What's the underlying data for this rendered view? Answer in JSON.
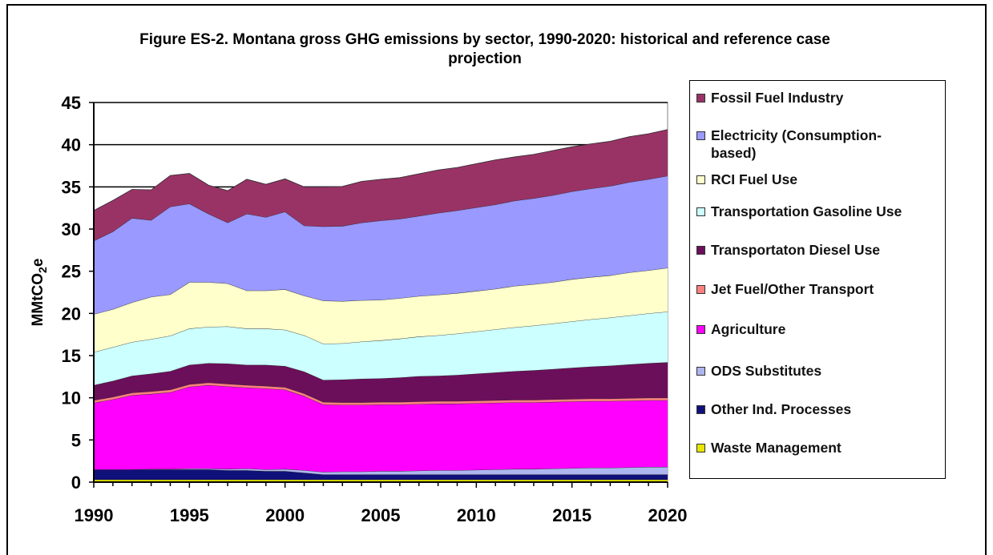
{
  "chart_data": {
    "type": "area",
    "stacked": true,
    "title": "Figure ES-2. Montana gross GHG emissions by sector, 1990-2020: historical and reference case\nprojection",
    "ylabel": "MMtCO2e",
    "xlabel": "",
    "ylim": [
      0,
      45
    ],
    "xlim": [
      1990,
      2020
    ],
    "x_ticks": [
      1990,
      1995,
      2000,
      2005,
      2010,
      2015,
      2020
    ],
    "y_ticks": [
      0,
      5,
      10,
      15,
      20,
      25,
      30,
      35,
      40,
      45
    ],
    "grid": "major horizontal gridlines",
    "legend_position": "right",
    "x": [
      1990,
      1991,
      1992,
      1993,
      1994,
      1995,
      1996,
      1997,
      1998,
      1999,
      2000,
      2001,
      2002,
      2003,
      2004,
      2005,
      2006,
      2007,
      2008,
      2009,
      2010,
      2011,
      2012,
      2013,
      2014,
      2015,
      2016,
      2017,
      2018,
      2019,
      2020
    ],
    "series": [
      {
        "name": "Waste Management",
        "color": "#e6e600",
        "values": [
          0.3,
          0.3,
          0.3,
          0.3,
          0.3,
          0.3,
          0.3,
          0.3,
          0.3,
          0.3,
          0.3,
          0.3,
          0.3,
          0.3,
          0.3,
          0.3,
          0.3,
          0.3,
          0.3,
          0.3,
          0.3,
          0.3,
          0.3,
          0.3,
          0.3,
          0.3,
          0.3,
          0.3,
          0.3,
          0.3,
          0.3
        ]
      },
      {
        "name": "Other Ind. Processes",
        "color": "#10107a",
        "values": [
          1.2,
          1.2,
          1.2,
          1.2,
          1.2,
          1.2,
          1.2,
          1.1,
          1.1,
          1.0,
          1.0,
          0.8,
          0.6,
          0.6,
          0.6,
          0.6,
          0.6,
          0.6,
          0.6,
          0.6,
          0.6,
          0.6,
          0.6,
          0.6,
          0.6,
          0.6,
          0.6,
          0.6,
          0.6,
          0.6,
          0.6
        ]
      },
      {
        "name": "ODS Substitutes",
        "color": "#aeb6f0",
        "values": [
          0.0,
          0.0,
          0.0,
          0.05,
          0.05,
          0.1,
          0.1,
          0.15,
          0.2,
          0.2,
          0.25,
          0.3,
          0.3,
          0.35,
          0.35,
          0.4,
          0.4,
          0.45,
          0.5,
          0.5,
          0.55,
          0.6,
          0.65,
          0.65,
          0.7,
          0.75,
          0.8,
          0.8,
          0.85,
          0.9,
          0.9
        ]
      },
      {
        "name": "Agriculture",
        "color": "#ff00ff",
        "values": [
          7.9,
          8.3,
          8.8,
          8.9,
          9.1,
          9.7,
          9.9,
          9.8,
          9.6,
          9.6,
          9.4,
          8.8,
          8.0,
          7.9,
          7.9,
          7.9,
          7.9,
          7.9,
          7.9,
          7.9,
          7.9,
          7.9,
          7.9,
          7.9,
          7.9,
          7.9,
          7.9,
          7.9,
          7.9,
          7.9,
          7.9
        ]
      },
      {
        "name": "Jet Fuel/Other Transport",
        "color": "#ff8080",
        "values": [
          0.3,
          0.3,
          0.3,
          0.3,
          0.3,
          0.3,
          0.3,
          0.3,
          0.3,
          0.3,
          0.3,
          0.3,
          0.3,
          0.3,
          0.3,
          0.3,
          0.3,
          0.3,
          0.3,
          0.3,
          0.3,
          0.3,
          0.3,
          0.3,
          0.3,
          0.3,
          0.3,
          0.3,
          0.3,
          0.3,
          0.3
        ]
      },
      {
        "name": "Transportaton Diesel Use",
        "color": "#6b0f5a",
        "values": [
          1.8,
          1.9,
          2.0,
          2.1,
          2.2,
          2.3,
          2.3,
          2.4,
          2.4,
          2.5,
          2.5,
          2.6,
          2.6,
          2.7,
          2.8,
          2.8,
          2.9,
          3.0,
          3.0,
          3.1,
          3.2,
          3.3,
          3.4,
          3.5,
          3.6,
          3.7,
          3.8,
          3.9,
          4.0,
          4.1,
          4.2
        ]
      },
      {
        "name": "Transportation Gasoline Use",
        "color": "#ccffff",
        "values": [
          3.9,
          4.0,
          4.0,
          4.1,
          4.2,
          4.3,
          4.3,
          4.4,
          4.3,
          4.3,
          4.3,
          4.3,
          4.3,
          4.3,
          4.4,
          4.5,
          4.6,
          4.7,
          4.8,
          4.9,
          5.0,
          5.1,
          5.2,
          5.3,
          5.4,
          5.5,
          5.6,
          5.7,
          5.8,
          5.9,
          6.0
        ]
      },
      {
        "name": "RCI Fuel Use",
        "color": "#ffffcc",
        "values": [
          4.5,
          4.5,
          4.7,
          5.0,
          4.9,
          5.5,
          5.3,
          5.1,
          4.5,
          4.5,
          4.8,
          4.7,
          5.1,
          5.0,
          4.9,
          4.8,
          4.8,
          4.8,
          4.8,
          4.8,
          4.8,
          4.8,
          4.9,
          4.9,
          4.9,
          5.0,
          5.0,
          5.0,
          5.1,
          5.1,
          5.2
        ]
      },
      {
        "name": "Electricity (Consumption-\nbased)",
        "color": "#9999ff",
        "values": [
          8.7,
          9.2,
          10.0,
          9.1,
          10.4,
          9.3,
          8.1,
          7.2,
          9.1,
          8.7,
          9.2,
          8.3,
          8.8,
          8.9,
          9.2,
          9.4,
          9.4,
          9.5,
          9.7,
          9.8,
          9.9,
          10.0,
          10.1,
          10.2,
          10.3,
          10.4,
          10.5,
          10.6,
          10.7,
          10.8,
          10.9
        ]
      },
      {
        "name": "Fossil Fuel Industry",
        "color": "#993366",
        "values": [
          3.6,
          3.7,
          3.4,
          3.6,
          3.7,
          3.6,
          3.4,
          3.8,
          4.1,
          3.9,
          3.9,
          4.6,
          4.7,
          4.7,
          4.9,
          4.9,
          4.9,
          5.0,
          5.1,
          5.1,
          5.2,
          5.3,
          5.2,
          5.2,
          5.3,
          5.3,
          5.3,
          5.3,
          5.4,
          5.4,
          5.5
        ]
      }
    ]
  }
}
